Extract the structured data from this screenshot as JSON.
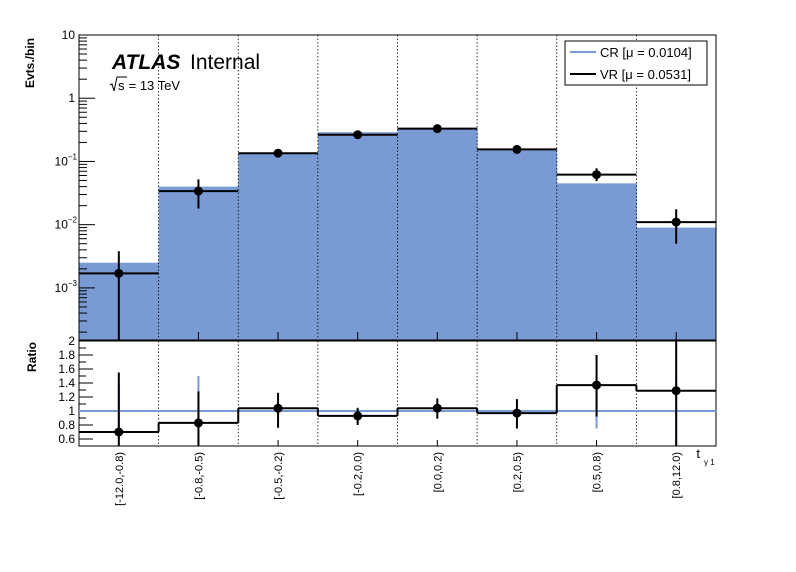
{
  "chart_data": [
    {
      "type": "bar",
      "categories": [
        "[-12.0,-0.8)",
        "[-0.8,-0.5)",
        "[-0.5,-0.2)",
        "[-0.2,0.0)",
        "[0.0,0.2)",
        "[0.2,0.5)",
        "[0.5,0.8)",
        "[0.8,12.0)"
      ],
      "ylabel": "Evts./bin",
      "yscale": "log",
      "ylim": [
        0.00015,
        10
      ],
      "yticks": [
        {
          "v": 0.001,
          "base": "10",
          "exp": "−3"
        },
        {
          "v": 0.01,
          "base": "10",
          "exp": "−2"
        },
        {
          "v": 0.1,
          "base": "10",
          "exp": "−1"
        },
        {
          "v": 1,
          "base": "1",
          "exp": ""
        },
        {
          "v": 10,
          "base": "10",
          "exp": ""
        }
      ],
      "atlas_label": "ATLAS",
      "atlas_sub": "Internal",
      "sqrt_s": "s",
      "energy_text": " = 13 TeV",
      "legend_position": "top-right",
      "series": [
        {
          "name": "CR [μ = 0.0104]",
          "style": "filled-histogram",
          "color": "#7a9ad4",
          "values": [
            0.0025,
            0.04,
            0.135,
            0.29,
            0.33,
            0.16,
            0.045,
            0.009
          ]
        },
        {
          "name": "VR [μ = 0.0531]",
          "style": "points-with-error-bars",
          "color": "#000000",
          "values": [
            0.0017,
            0.034,
            0.135,
            0.265,
            0.33,
            0.155,
            0.062,
            0.011
          ],
          "err_low": [
            0.0017,
            0.016,
            0.012,
            0.02,
            0.025,
            0.018,
            0.013,
            0.006
          ],
          "err_high": [
            0.0021,
            0.018,
            0.014,
            0.022,
            0.028,
            0.02,
            0.016,
            0.0065
          ]
        }
      ]
    },
    {
      "type": "line",
      "categories": [
        "[-12.0,-0.8)",
        "[-0.8,-0.5)",
        "[-0.5,-0.2)",
        "[-0.2,0.0)",
        "[0.0,0.2)",
        "[0.2,0.5)",
        "[0.5,0.8)",
        "[0.8,12.0)"
      ],
      "ylabel": "Ratio",
      "xlabel": "t",
      "xlabel_sub": "γ 1",
      "ylim": [
        0.5,
        2.0
      ],
      "yticks": [
        "0.6",
        "0.8",
        "1",
        "1.2",
        "1.4",
        "1.6",
        "1.8",
        "2"
      ],
      "reference_line": 1.0,
      "reference_color": "#7a9ad4",
      "values": [
        0.7,
        0.83,
        1.04,
        0.93,
        1.04,
        0.97,
        1.37,
        1.29
      ],
      "err_low": [
        0.7,
        0.35,
        0.28,
        0.13,
        0.15,
        0.22,
        0.45,
        0.79
      ],
      "err_high": [
        0.85,
        0.45,
        0.22,
        0.11,
        0.14,
        0.2,
        0.43,
        0.72
      ],
      "cr_err": [
        0.4,
        0.5,
        0.06,
        0.05,
        0.03,
        0.05,
        0.25,
        0.5
      ]
    }
  ]
}
